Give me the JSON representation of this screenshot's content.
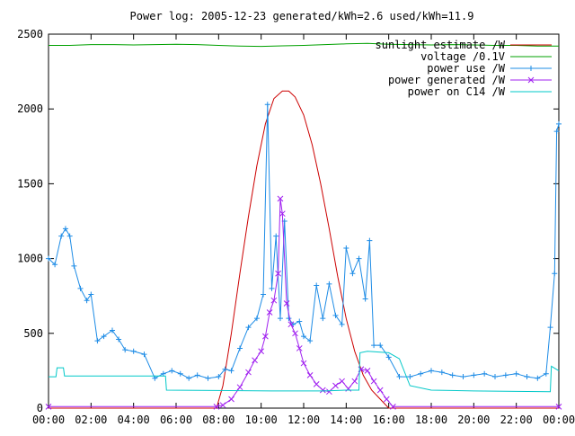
{
  "chart_data": {
    "type": "line",
    "title": "Power log: 2005-12-23 generated/kWh=2.6 used/kWh=11.9",
    "xlabel": "",
    "ylabel": "",
    "xlim": [
      0,
      24
    ],
    "ylim": [
      0,
      2500
    ],
    "grid": false,
    "legend_position": "top-right",
    "x_tick_labels": [
      "00:00",
      "02:00",
      "04:00",
      "06:00",
      "08:00",
      "10:00",
      "12:00",
      "14:00",
      "16:00",
      "18:00",
      "20:00",
      "22:00",
      "00:00"
    ],
    "x_tick_values": [
      0,
      2,
      4,
      6,
      8,
      10,
      12,
      14,
      16,
      18,
      20,
      22,
      24
    ],
    "y_tick_labels": [
      "0",
      "500",
      "1000",
      "1500",
      "2000",
      "2500"
    ],
    "y_tick_values": [
      0,
      500,
      1000,
      1500,
      2000,
      2500
    ],
    "series": [
      {
        "name": "sunlight estimate /W",
        "color": "#cc0000",
        "style": "line",
        "x": [
          0,
          7.9,
          8.2,
          8.6,
          9.0,
          9.4,
          9.8,
          10.2,
          10.6,
          11.0,
          11.3,
          11.6,
          12.0,
          12.4,
          12.8,
          13.2,
          13.6,
          14.0,
          14.4,
          14.8,
          15.2,
          15.6,
          16.0,
          24
        ],
        "y": [
          0,
          0,
          150,
          500,
          900,
          1280,
          1620,
          1900,
          2070,
          2120,
          2120,
          2080,
          1960,
          1760,
          1500,
          1200,
          880,
          600,
          380,
          220,
          120,
          60,
          0,
          0
        ]
      },
      {
        "name": "voltage /0.1V",
        "color": "#00a000",
        "style": "line",
        "x": [
          0,
          1,
          2,
          3,
          4,
          5,
          6,
          7,
          8,
          9,
          10,
          11,
          12,
          13,
          14,
          15,
          16,
          17,
          18,
          19,
          20,
          21,
          22,
          23,
          24
        ],
        "y": [
          2425,
          2425,
          2430,
          2430,
          2428,
          2430,
          2432,
          2430,
          2425,
          2420,
          2418,
          2422,
          2425,
          2430,
          2435,
          2438,
          2432,
          2430,
          2428,
          2430,
          2428,
          2425,
          2425,
          2420,
          2420
        ]
      },
      {
        "name": "power use /W",
        "color": "#1e8ce6",
        "style": "plus",
        "x": [
          0,
          0.3,
          0.6,
          0.8,
          1.0,
          1.2,
          1.5,
          1.8,
          2.0,
          2.3,
          2.6,
          3.0,
          3.3,
          3.6,
          4.0,
          4.5,
          5.0,
          5.4,
          5.8,
          6.2,
          6.6,
          7.0,
          7.5,
          8.0,
          8.3,
          8.6,
          9.0,
          9.4,
          9.8,
          10.1,
          10.3,
          10.5,
          10.7,
          10.9,
          11.1,
          11.3,
          11.5,
          11.8,
          12.0,
          12.3,
          12.6,
          12.9,
          13.2,
          13.5,
          13.8,
          14.0,
          14.3,
          14.6,
          14.9,
          15.1,
          15.3,
          15.6,
          16.0,
          16.5,
          17.0,
          17.5,
          18.0,
          18.5,
          19.0,
          19.5,
          20.0,
          20.5,
          21.0,
          21.5,
          22.0,
          22.5,
          23.0,
          23.4,
          23.6,
          23.8,
          23.9,
          24.0
        ],
        "y": [
          1000,
          960,
          1150,
          1200,
          1150,
          950,
          800,
          720,
          760,
          450,
          480,
          520,
          460,
          390,
          380,
          360,
          200,
          230,
          250,
          230,
          200,
          220,
          200,
          210,
          260,
          250,
          400,
          540,
          600,
          760,
          2030,
          800,
          1150,
          600,
          1250,
          600,
          560,
          580,
          480,
          450,
          820,
          600,
          830,
          620,
          560,
          1070,
          900,
          1000,
          730,
          1120,
          420,
          420,
          340,
          210,
          210,
          230,
          250,
          240,
          220,
          210,
          220,
          230,
          210,
          220,
          230,
          210,
          200,
          230,
          540,
          900,
          1850,
          1900
        ]
      },
      {
        "name": "power generated /W",
        "color": "#a020f0",
        "style": "cross",
        "x": [
          0,
          7.9,
          8.2,
          8.6,
          9.0,
          9.4,
          9.7,
          10.0,
          10.2,
          10.4,
          10.6,
          10.8,
          10.9,
          11.0,
          11.2,
          11.4,
          11.6,
          11.8,
          12.0,
          12.3,
          12.6,
          12.9,
          13.2,
          13.5,
          13.8,
          14.1,
          14.4,
          14.7,
          15.0,
          15.3,
          15.6,
          15.9,
          16.2,
          24
        ],
        "y": [
          10,
          10,
          20,
          60,
          140,
          240,
          320,
          380,
          480,
          640,
          720,
          900,
          1400,
          1300,
          700,
          560,
          500,
          400,
          300,
          220,
          160,
          120,
          110,
          150,
          180,
          130,
          180,
          260,
          250,
          180,
          120,
          60,
          10,
          10
        ]
      },
      {
        "name": "power on C14 /W",
        "color": "#00c8c8",
        "style": "line",
        "x": [
          0,
          0.35,
          0.4,
          0.7,
          0.75,
          5.5,
          5.55,
          10.5,
          11.0,
          12.0,
          13.0,
          14.0,
          14.6,
          14.65,
          15.0,
          16.0,
          16.5,
          17.0,
          18.0,
          20.0,
          22.0,
          23.6,
          23.65,
          24.0
        ],
        "y": [
          210,
          210,
          270,
          270,
          215,
          215,
          120,
          115,
          115,
          115,
          115,
          120,
          120,
          370,
          380,
          370,
          330,
          150,
          120,
          115,
          112,
          110,
          280,
          250
        ]
      }
    ]
  }
}
